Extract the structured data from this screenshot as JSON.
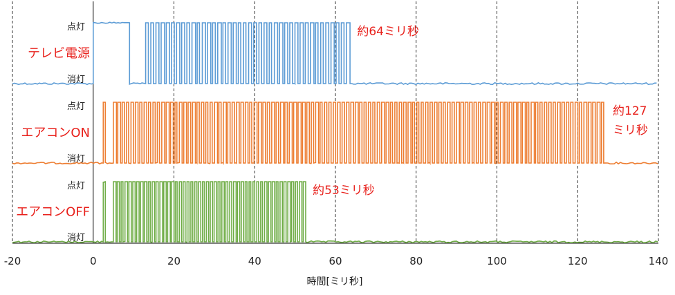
{
  "chart_data": {
    "type": "line",
    "xlabel": "時間[ミリ秒]",
    "xlim": [
      -20,
      140
    ],
    "x_ticks": [
      -20,
      0,
      20,
      40,
      60,
      80,
      100,
      120,
      140
    ],
    "grid": "vertical dashed",
    "state_labels": {
      "on": "点灯",
      "off": "消灯"
    },
    "annotation_color": "#e8211c",
    "series": [
      {
        "name": "テレビ電源",
        "color": "#5b9bd5",
        "annotation": [
          "約64ミリ秒"
        ],
        "signal_start": 0,
        "signal_end": 64,
        "initial_high_end": 9,
        "burst_start": 13,
        "burst_end": 64,
        "pulses": 40
      },
      {
        "name": "エアコンON",
        "color": "#ed7d31",
        "annotation": [
          "約127",
          "ミリ秒"
        ],
        "signal_start": 2.5,
        "signal_end": 127,
        "initial_high_end": 3,
        "burst_start": 5,
        "burst_end": 127,
        "pulses": 112
      },
      {
        "name": "エアコンOFF",
        "color": "#70ad47",
        "annotation": [
          "約53ミリ秒"
        ],
        "signal_start": 2.5,
        "signal_end": 53,
        "initial_high_end": 3,
        "burst_start": 5,
        "burst_end": 53,
        "pulses": 50
      }
    ]
  }
}
